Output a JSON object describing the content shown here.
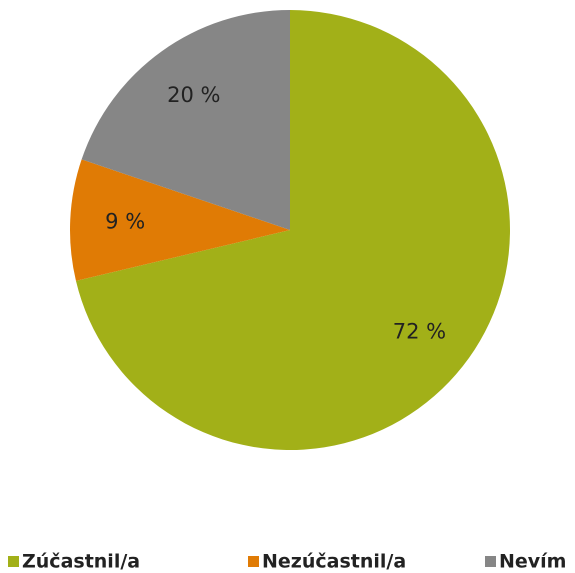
{
  "chart_data": {
    "type": "pie",
    "categories": [
      "Zúčastnil/a",
      "Nezúčastnil/a",
      "Nevím"
    ],
    "values": [
      72,
      9,
      20
    ],
    "value_labels": [
      "72 %",
      "9 %",
      "20 %"
    ],
    "colors": [
      "#a2b018",
      "#e07b05",
      "#868686"
    ],
    "legend": "bottom"
  }
}
